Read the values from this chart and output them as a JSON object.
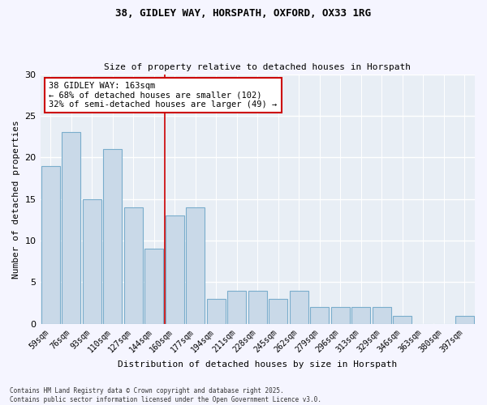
{
  "title1": "38, GIDLEY WAY, HORSPATH, OXFORD, OX33 1RG",
  "title2": "Size of property relative to detached houses in Horspath",
  "xlabel": "Distribution of detached houses by size in Horspath",
  "ylabel": "Number of detached properties",
  "categories": [
    "59sqm",
    "76sqm",
    "93sqm",
    "110sqm",
    "127sqm",
    "144sqm",
    "160sqm",
    "177sqm",
    "194sqm",
    "211sqm",
    "228sqm",
    "245sqm",
    "262sqm",
    "279sqm",
    "296sqm",
    "313sqm",
    "329sqm",
    "346sqm",
    "363sqm",
    "380sqm",
    "397sqm"
  ],
  "values": [
    19,
    23,
    15,
    21,
    14,
    9,
    13,
    14,
    3,
    4,
    4,
    3,
    4,
    2,
    2,
    2,
    2,
    1,
    0,
    0,
    1
  ],
  "bar_color": "#c9d9e8",
  "bar_edgecolor": "#7aadcc",
  "vline_index": 6,
  "annotation_text_line1": "38 GIDLEY WAY: 163sqm",
  "annotation_text_line2": "← 68% of detached houses are smaller (102)",
  "annotation_text_line3": "32% of semi-detached houses are larger (49) →",
  "vline_color": "#cc0000",
  "annotation_box_facecolor": "#ffffff",
  "annotation_box_edgecolor": "#cc0000",
  "ylim": [
    0,
    30
  ],
  "yticks": [
    0,
    5,
    10,
    15,
    20,
    25,
    30
  ],
  "plot_bg_color": "#e8eef5",
  "fig_bg_color": "#f5f5ff",
  "footer": "Contains HM Land Registry data © Crown copyright and database right 2025.\nContains public sector information licensed under the Open Government Licence v3.0."
}
